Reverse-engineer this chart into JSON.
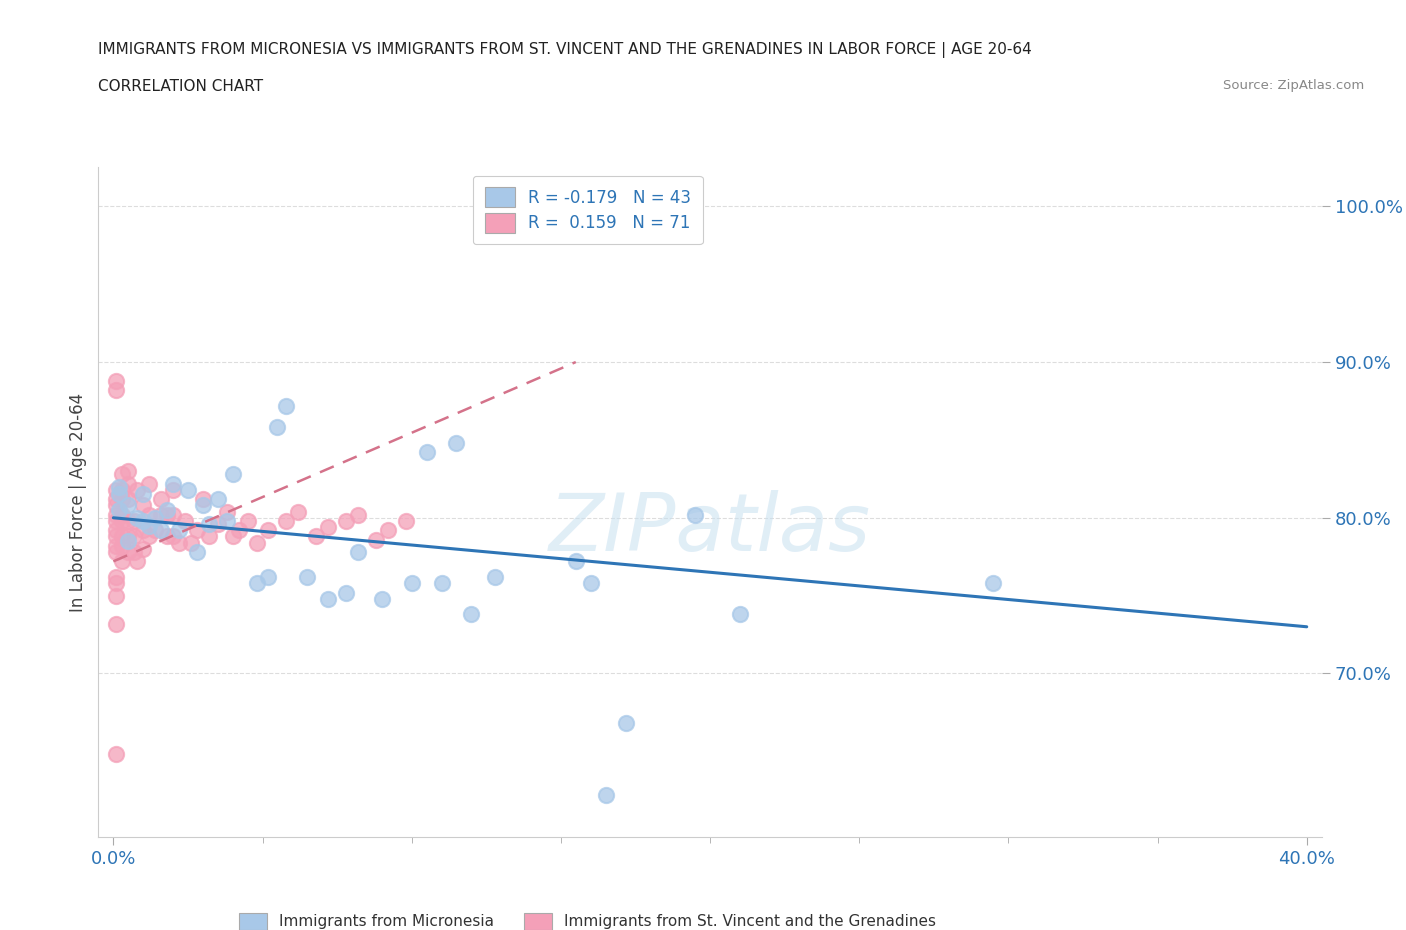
{
  "title": "IMMIGRANTS FROM MICRONESIA VS IMMIGRANTS FROM ST. VINCENT AND THE GRENADINES IN LABOR FORCE | AGE 20-64",
  "subtitle": "CORRELATION CHART",
  "source": "Source: ZipAtlas.com",
  "ylabel": "In Labor Force | Age 20-64",
  "xlim": [
    -0.005,
    0.405
  ],
  "ylim": [
    0.595,
    1.025
  ],
  "yticks": [
    0.7,
    0.8,
    0.9,
    1.0
  ],
  "ytick_labels": [
    "70.0%",
    "80.0%",
    "90.0%",
    "100.0%"
  ],
  "xticks": [
    0.0,
    0.4
  ],
  "xtick_labels": [
    "0.0%",
    "40.0%"
  ],
  "xticks_minor": [
    0.05,
    0.1,
    0.15,
    0.2,
    0.25,
    0.3,
    0.35
  ],
  "blue_color": "#a8c8e8",
  "pink_color": "#f4a0b8",
  "blue_line_color": "#2e75b6",
  "pink_line_color": "#d4728a",
  "legend_label_color": "#2e75b6",
  "legend_R_blue": "R = -0.179",
  "legend_N_blue": "N = 43",
  "legend_R_pink": "R =  0.159",
  "legend_N_pink": "N = 71",
  "watermark": "ZIPatlas",
  "blue_scatter_x": [
    0.002,
    0.002,
    0.002,
    0.005,
    0.005,
    0.008,
    0.01,
    0.01,
    0.012,
    0.014,
    0.016,
    0.018,
    0.02,
    0.022,
    0.025,
    0.028,
    0.03,
    0.032,
    0.035,
    0.038,
    0.04,
    0.048,
    0.052,
    0.055,
    0.058,
    0.065,
    0.072,
    0.078,
    0.082,
    0.09,
    0.1,
    0.105,
    0.11,
    0.115,
    0.12,
    0.128,
    0.155,
    0.16,
    0.165,
    0.172,
    0.195,
    0.21,
    0.295
  ],
  "blue_scatter_y": [
    0.82,
    0.805,
    0.815,
    0.785,
    0.808,
    0.8,
    0.798,
    0.815,
    0.795,
    0.8,
    0.792,
    0.805,
    0.822,
    0.792,
    0.818,
    0.778,
    0.808,
    0.796,
    0.812,
    0.798,
    0.828,
    0.758,
    0.762,
    0.858,
    0.872,
    0.762,
    0.748,
    0.752,
    0.778,
    0.748,
    0.758,
    0.842,
    0.758,
    0.848,
    0.738,
    0.762,
    0.772,
    0.758,
    0.622,
    0.668,
    0.802,
    0.738,
    0.758
  ],
  "pink_scatter_x": [
    0.001,
    0.001,
    0.001,
    0.001,
    0.001,
    0.001,
    0.001,
    0.001,
    0.001,
    0.001,
    0.001,
    0.001,
    0.001,
    0.001,
    0.001,
    0.001,
    0.003,
    0.003,
    0.003,
    0.003,
    0.003,
    0.003,
    0.003,
    0.003,
    0.005,
    0.005,
    0.005,
    0.005,
    0.005,
    0.005,
    0.007,
    0.007,
    0.007,
    0.008,
    0.008,
    0.01,
    0.01,
    0.01,
    0.012,
    0.012,
    0.012,
    0.014,
    0.016,
    0.016,
    0.018,
    0.018,
    0.02,
    0.02,
    0.02,
    0.022,
    0.024,
    0.026,
    0.028,
    0.03,
    0.032,
    0.035,
    0.038,
    0.04,
    0.042,
    0.045,
    0.048,
    0.052,
    0.058,
    0.062,
    0.068,
    0.072,
    0.078,
    0.082,
    0.088,
    0.092,
    0.098
  ],
  "pink_scatter_y": [
    0.648,
    0.732,
    0.758,
    0.762,
    0.778,
    0.782,
    0.788,
    0.792,
    0.798,
    0.802,
    0.808,
    0.812,
    0.818,
    0.882,
    0.888,
    0.75,
    0.772,
    0.782,
    0.788,
    0.798,
    0.802,
    0.812,
    0.818,
    0.828,
    0.778,
    0.788,
    0.798,
    0.812,
    0.822,
    0.83,
    0.778,
    0.788,
    0.798,
    0.818,
    0.772,
    0.78,
    0.792,
    0.808,
    0.822,
    0.788,
    0.802,
    0.792,
    0.812,
    0.802,
    0.788,
    0.802,
    0.788,
    0.802,
    0.818,
    0.784,
    0.798,
    0.784,
    0.792,
    0.812,
    0.788,
    0.796,
    0.804,
    0.788,
    0.792,
    0.798,
    0.784,
    0.792,
    0.798,
    0.804,
    0.788,
    0.794,
    0.798,
    0.802,
    0.786,
    0.792,
    0.798
  ],
  "blue_trendline_x": [
    0.0,
    0.4
  ],
  "blue_trendline_y": [
    0.8,
    0.73
  ],
  "pink_trendline_x": [
    0.0,
    0.155
  ],
  "pink_trendline_y": [
    0.772,
    0.9
  ],
  "grid_color": "#dddddd",
  "spine_color": "#cccccc",
  "tick_color": "#aaaaaa"
}
